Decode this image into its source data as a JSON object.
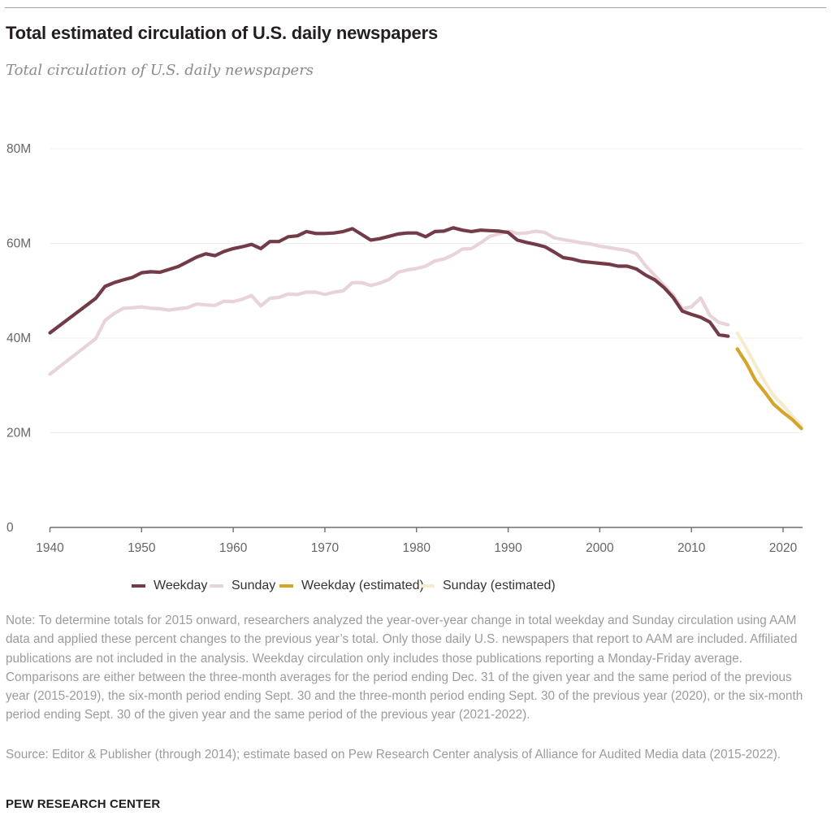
{
  "header": {
    "title": "Total estimated circulation of U.S. daily newspapers",
    "subtitle": "Total circulation of U.S. daily newspapers"
  },
  "colors": {
    "weekday": "#733a47",
    "sunday": "#e8d3d9",
    "weekday_estimated": "#d4a52b",
    "sunday_estimated": "#f6ebcf",
    "grid": "#efefef",
    "axis": "#6f6f6f"
  },
  "chart_data": {
    "type": "line",
    "title": "Total estimated circulation of U.S. daily newspapers",
    "subtitle": "Total circulation of U.S. daily newspapers",
    "xlabel": "",
    "ylabel": "",
    "xlim": [
      1940,
      2022
    ],
    "ylim": [
      0,
      80
    ],
    "unit": "millions",
    "grid": true,
    "legend_position": "bottom-center",
    "y_ticks": [
      {
        "value": 0,
        "label": "0"
      },
      {
        "value": 20,
        "label": "20M"
      },
      {
        "value": 40,
        "label": "40M"
      },
      {
        "value": 60,
        "label": "60M"
      },
      {
        "value": 80,
        "label": "80M"
      }
    ],
    "x_ticks": [
      {
        "value": 1940,
        "label": "1940"
      },
      {
        "value": 1950,
        "label": "1950"
      },
      {
        "value": 1960,
        "label": "1960"
      },
      {
        "value": 1970,
        "label": "1970"
      },
      {
        "value": 1980,
        "label": "1980"
      },
      {
        "value": 1990,
        "label": "1990"
      },
      {
        "value": 2000,
        "label": "2000"
      },
      {
        "value": 2010,
        "label": "2010"
      },
      {
        "value": 2020,
        "label": "2020"
      }
    ],
    "series": [
      {
        "name": "Sunday",
        "key": "sunday",
        "x": [
          1940,
          1945,
          1946,
          1947,
          1948,
          1949,
          1950,
          1951,
          1952,
          1953,
          1954,
          1955,
          1956,
          1957,
          1958,
          1959,
          1960,
          1961,
          1962,
          1963,
          1964,
          1965,
          1966,
          1967,
          1968,
          1969,
          1970,
          1971,
          1972,
          1973,
          1974,
          1975,
          1976,
          1977,
          1978,
          1979,
          1980,
          1981,
          1982,
          1983,
          1984,
          1985,
          1986,
          1987,
          1988,
          1989,
          1990,
          1991,
          1992,
          1993,
          1994,
          1995,
          1996,
          1997,
          1998,
          1999,
          2000,
          2001,
          2002,
          2003,
          2004,
          2005,
          2006,
          2007,
          2008,
          2009,
          2010,
          2011,
          2012,
          2013,
          2014
        ],
        "values": [
          32.4,
          39.9,
          43.7,
          45.2,
          46.3,
          46.4,
          46.6,
          46.3,
          46.2,
          45.9,
          46.2,
          46.4,
          47.2,
          47.0,
          46.9,
          47.8,
          47.7,
          48.2,
          49.0,
          46.8,
          48.4,
          48.6,
          49.3,
          49.2,
          49.7,
          49.7,
          49.2,
          49.7,
          50.0,
          51.7,
          51.7,
          51.1,
          51.6,
          52.4,
          53.9,
          54.4,
          54.7,
          55.2,
          56.3,
          56.7,
          57.6,
          58.8,
          58.9,
          60.1,
          61.5,
          62.0,
          62.6,
          62.1,
          62.2,
          62.6,
          62.3,
          61.2,
          60.8,
          60.5,
          60.1,
          59.9,
          59.4,
          59.1,
          58.8,
          58.5,
          57.8,
          55.3,
          53.2,
          51.2,
          49.1,
          46.2,
          46.6,
          48.5,
          44.8,
          43.3,
          42.8
        ]
      },
      {
        "name": "Weekday",
        "key": "weekday",
        "x": [
          1940,
          1945,
          1946,
          1947,
          1948,
          1949,
          1950,
          1951,
          1952,
          1953,
          1954,
          1955,
          1956,
          1957,
          1958,
          1959,
          1960,
          1961,
          1962,
          1963,
          1964,
          1965,
          1966,
          1967,
          1968,
          1969,
          1970,
          1971,
          1972,
          1973,
          1974,
          1975,
          1976,
          1977,
          1978,
          1979,
          1980,
          1981,
          1982,
          1983,
          1984,
          1985,
          1986,
          1987,
          1988,
          1989,
          1990,
          1991,
          1992,
          1993,
          1994,
          1995,
          1996,
          1997,
          1998,
          1999,
          2000,
          2001,
          2002,
          2003,
          2004,
          2005,
          2006,
          2007,
          2008,
          2009,
          2010,
          2011,
          2012,
          2013,
          2014
        ],
        "values": [
          41.1,
          48.4,
          50.9,
          51.7,
          52.3,
          52.8,
          53.8,
          54.0,
          53.9,
          54.5,
          55.1,
          56.1,
          57.1,
          57.8,
          57.4,
          58.3,
          58.9,
          59.3,
          59.8,
          58.9,
          60.4,
          60.4,
          61.4,
          61.6,
          62.5,
          62.1,
          62.1,
          62.2,
          62.5,
          63.1,
          61.9,
          60.7,
          61.0,
          61.5,
          62.0,
          62.2,
          62.2,
          61.4,
          62.5,
          62.6,
          63.3,
          62.8,
          62.5,
          62.8,
          62.7,
          62.6,
          62.3,
          60.7,
          60.2,
          59.8,
          59.3,
          58.2,
          57.0,
          56.7,
          56.2,
          56.0,
          55.8,
          55.6,
          55.2,
          55.2,
          54.6,
          53.3,
          52.3,
          50.7,
          48.6,
          45.7,
          45.0,
          44.4,
          43.4,
          40.7,
          40.4
        ]
      },
      {
        "name": "Sunday (estimated)",
        "key": "sunday_estimated",
        "x": [
          2015,
          2016,
          2017,
          2018,
          2019,
          2020,
          2021,
          2022
        ],
        "values": [
          41.1,
          37.8,
          34.2,
          30.8,
          27.8,
          25.8,
          23.5,
          21.5
        ]
      },
      {
        "name": "Weekday (estimated)",
        "key": "weekday_estimated",
        "x": [
          2015,
          2016,
          2017,
          2018,
          2019,
          2020,
          2021,
          2022
        ],
        "values": [
          37.7,
          34.7,
          31.0,
          28.6,
          26.0,
          24.3,
          22.8,
          20.9
        ]
      }
    ]
  },
  "legend": [
    {
      "label": "Weekday",
      "key": "weekday"
    },
    {
      "label": "Sunday",
      "key": "sunday"
    },
    {
      "label": "Weekday (estimated)",
      "key": "weekday_estimated"
    },
    {
      "label": "Sunday (estimated)",
      "key": "sunday_estimated"
    }
  ],
  "note": "Note: To determine totals for 2015 onward, researchers analyzed the year-over-year change in total weekday and Sunday circulation using AAM data and applied these percent changes to the previous year’s total. Only those daily U.S. newspapers that report to AAM are included. Affiliated publications are not included in the analysis. Weekday circulation only includes those publications reporting a Monday-Friday average. Comparisons are either between the three-month averages for the period ending Dec. 31 of the given year and the same period of the previous year (2015-2019), the six-month period ending Sept. 30 and the three-month period ending Sept. 30 of the previous year (2020), or the six-month period ending Sept. 30 of the given year and the same period of the previous year (2021-2022).",
  "source": "Source: Editor & Publisher (through 2014); estimate based on Pew Research Center analysis of Alliance for Audited Media data (2015-2022).",
  "footer": "PEW RESEARCH CENTER"
}
